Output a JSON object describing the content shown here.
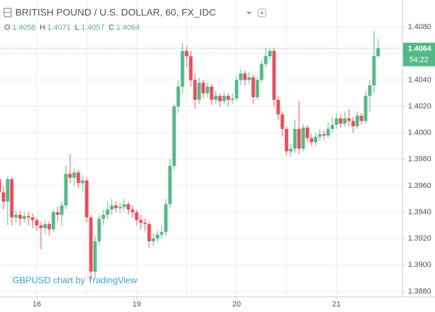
{
  "chart_data": {
    "type": "candlestick",
    "title": "BRITISH POUND / U.S. DOLLAR, 60, FX_IDC",
    "ohlc": {
      "labels": [
        "O",
        "H",
        "L",
        "C"
      ],
      "values": [
        1.4058,
        1.4071,
        1.4057,
        1.4064
      ]
    },
    "countdown": "54:22",
    "watermark": "GBPUSD chart by TradingView",
    "categories": [
      null,
      null,
      null,
      null,
      null,
      null,
      null,
      null,
      null,
      "16",
      null,
      null,
      null,
      null,
      null,
      null,
      null,
      null,
      null,
      null,
      null,
      null,
      null,
      null,
      null,
      null,
      null,
      null,
      null,
      null,
      null,
      null,
      null,
      "19",
      null,
      null,
      null,
      null,
      null,
      null,
      null,
      null,
      null,
      null,
      null,
      null,
      null,
      null,
      null,
      null,
      null,
      null,
      null,
      null,
      null,
      null,
      null,
      "20",
      null,
      null,
      null,
      null,
      null,
      null,
      null,
      null,
      null,
      null,
      null,
      null,
      null,
      null,
      null,
      null,
      null,
      null,
      null,
      null,
      null,
      null,
      null,
      "21",
      null,
      null,
      null,
      null,
      null,
      null,
      null,
      null,
      null,
      null
    ],
    "open": [
      1.3965,
      1.3955,
      1.3948,
      1.3965,
      1.3936,
      1.3938,
      1.3935,
      1.3937,
      1.3936,
      1.3934,
      1.393,
      1.3928,
      1.3931,
      1.3927,
      1.394,
      1.3938,
      1.3945,
      1.3969,
      1.3966,
      1.397,
      1.3962,
      1.3964,
      1.3936,
      1.3895,
      1.3918,
      1.3935,
      1.3938,
      1.3942,
      1.3945,
      1.3943,
      1.3944,
      1.3946,
      1.3942,
      1.394,
      1.3934,
      1.3932,
      1.3931,
      1.3918,
      1.392,
      1.3923,
      1.3925,
      1.3946,
      1.3975,
      1.402,
      1.4035,
      1.4062,
      1.4058,
      1.404,
      1.4025,
      1.4038,
      1.403,
      1.4035,
      1.4025,
      1.4028,
      1.4024,
      1.4028,
      1.4025,
      1.4026,
      1.404,
      1.4045,
      1.404,
      1.4042,
      1.4027,
      1.404,
      1.4052,
      1.4058,
      1.4062,
      1.4025,
      1.4014,
      1.4003,
      1.3986,
      1.3988,
      1.4003,
      1.3988,
      1.4004,
      1.3996,
      1.3993,
      1.3997,
      1.3999,
      1.3998,
      1.4003,
      1.4006,
      1.4011,
      1.4007,
      1.4011,
      1.4009,
      1.4005,
      1.4013,
      1.4009,
      1.4028,
      1.4036,
      1.4058
    ],
    "high": [
      1.3982,
      1.396,
      1.3967,
      1.3966,
      1.3942,
      1.3941,
      1.394,
      1.394,
      1.3939,
      1.3936,
      1.3933,
      1.3934,
      1.3933,
      1.3942,
      1.3944,
      1.3948,
      1.3975,
      1.3984,
      1.3973,
      1.3972,
      1.3968,
      1.3966,
      1.3938,
      1.3922,
      1.3938,
      1.3942,
      1.3948,
      1.395,
      1.3948,
      1.3947,
      1.395,
      1.3948,
      1.3945,
      1.3942,
      1.3938,
      1.3935,
      1.3933,
      1.3924,
      1.3926,
      1.393,
      1.395,
      1.398,
      1.4022,
      1.404,
      1.4068,
      1.4066,
      1.4062,
      1.4045,
      1.4042,
      1.404,
      1.4038,
      1.4037,
      1.4032,
      1.403,
      1.4031,
      1.403,
      1.403,
      1.4043,
      1.4048,
      1.4047,
      1.4046,
      1.4044,
      1.4043,
      1.4055,
      1.4064,
      1.4064,
      1.4064,
      1.4028,
      1.4016,
      1.4005,
      1.3992,
      1.401,
      1.4024,
      1.4007,
      1.4006,
      1.3999,
      1.4,
      1.4003,
      1.4002,
      1.4008,
      1.4012,
      1.4015,
      1.4014,
      1.4016,
      1.4018,
      1.4012,
      1.4016,
      1.4015,
      1.4032,
      1.404,
      1.4077,
      1.4071
    ],
    "low": [
      1.395,
      1.3942,
      1.393,
      1.393,
      1.3932,
      1.393,
      1.3932,
      1.393,
      1.3928,
      1.3926,
      1.3912,
      1.3924,
      1.3922,
      1.3925,
      1.3933,
      1.393,
      1.3942,
      1.3962,
      1.396,
      1.3958,
      1.3955,
      1.3932,
      1.3888,
      1.389,
      1.3915,
      1.393,
      1.3935,
      1.3938,
      1.394,
      1.3939,
      1.3941,
      1.3938,
      1.3936,
      1.393,
      1.3927,
      1.3926,
      1.3913,
      1.3914,
      1.3917,
      1.392,
      1.3922,
      1.3943,
      1.3972,
      1.4015,
      1.403,
      1.405,
      1.4035,
      1.4018,
      1.4022,
      1.4026,
      1.4027,
      1.4021,
      1.4022,
      1.402,
      1.4022,
      1.402,
      1.4022,
      1.4024,
      1.4036,
      1.4036,
      1.4037,
      1.4022,
      1.4025,
      1.4038,
      1.405,
      1.4055,
      1.402,
      1.401,
      1.3997,
      1.3983,
      1.3982,
      1.3985,
      1.3984,
      1.3986,
      1.3993,
      1.399,
      1.399,
      1.3994,
      1.3995,
      1.3996,
      1.4,
      1.4003,
      1.4004,
      1.4005,
      1.4005,
      1.4,
      1.4003,
      1.4006,
      1.4007,
      1.4016,
      1.403,
      1.4057
    ],
    "close": [
      1.3955,
      1.3948,
      1.3965,
      1.3936,
      1.3938,
      1.3935,
      1.3937,
      1.3936,
      1.3934,
      1.393,
      1.3928,
      1.3931,
      1.3927,
      1.394,
      1.3938,
      1.3945,
      1.3969,
      1.3966,
      1.397,
      1.3962,
      1.3964,
      1.3936,
      1.3895,
      1.3918,
      1.3935,
      1.3938,
      1.3942,
      1.3945,
      1.3943,
      1.3944,
      1.3946,
      1.3942,
      1.394,
      1.3934,
      1.3932,
      1.3931,
      1.3918,
      1.392,
      1.3923,
      1.3925,
      1.3946,
      1.3975,
      1.402,
      1.4035,
      1.4062,
      1.4058,
      1.404,
      1.4025,
      1.4038,
      1.403,
      1.4035,
      1.4025,
      1.4028,
      1.4024,
      1.4028,
      1.4025,
      1.4026,
      1.404,
      1.4045,
      1.404,
      1.4042,
      1.4027,
      1.404,
      1.4052,
      1.4058,
      1.4062,
      1.4025,
      1.4014,
      1.4003,
      1.3986,
      1.3988,
      1.4003,
      1.3988,
      1.4004,
      1.3996,
      1.3993,
      1.3997,
      1.3999,
      1.3998,
      1.4003,
      1.4006,
      1.4011,
      1.4007,
      1.4011,
      1.4009,
      1.4005,
      1.4013,
      1.4009,
      1.4028,
      1.4036,
      1.4058,
      1.4064
    ],
    "up_color": "#53b987",
    "down_color": "#eb4d5c",
    "ylim": [
      1.3876,
      1.41
    ],
    "yticks": [
      {
        "value": 1.388,
        "label": "1.3880"
      },
      {
        "value": 1.39,
        "label": "1.3900"
      },
      {
        "value": 1.392,
        "label": "1.3920"
      },
      {
        "value": 1.394,
        "label": "1.3940"
      },
      {
        "value": 1.396,
        "label": "1.3960"
      },
      {
        "value": 1.398,
        "label": "1.3980"
      },
      {
        "value": 1.4,
        "label": "1.4000"
      },
      {
        "value": 1.402,
        "label": "1.4020"
      },
      {
        "value": 1.404,
        "label": "1.4040"
      },
      {
        "value": 1.406,
        "label": "1.4060"
      },
      {
        "value": 1.408,
        "label": "1.4080"
      }
    ],
    "grid": true
  }
}
